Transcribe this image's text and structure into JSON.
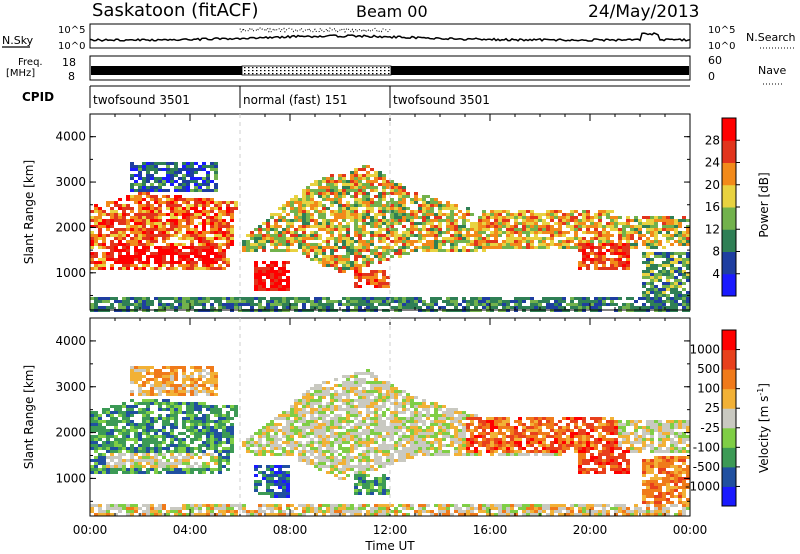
{
  "header": {
    "station": "Saskatoon (fitACF)",
    "beam": "Beam 00",
    "date": "24/May/2013"
  },
  "strip_panels": {
    "nsky_label": "N.Sky",
    "nsearch_label": "N.Search",
    "freq_label_1": "Freq.",
    "freq_label_2": "[MHz]",
    "nave_label": "Nave",
    "cpid_label": "CPID",
    "noise_ticks": [
      "10^5",
      "10^0"
    ],
    "freq_ticks": [
      "18",
      "8"
    ],
    "nave_ticks": [
      "60",
      "0"
    ]
  },
  "cpid_segments": [
    {
      "label": "twofsound 3501",
      "start_h": 0,
      "end_h": 6
    },
    {
      "label": "normal (fast) 151",
      "start_h": 6,
      "end_h": 12
    },
    {
      "label": "twofsound 3501",
      "start_h": 12,
      "end_h": 24
    }
  ],
  "chart_data": [
    {
      "type": "heatmap",
      "name": "power",
      "ylabel": "Slant Range [km]",
      "yticks": [
        "4000",
        "3000",
        "2000",
        "1000"
      ],
      "ylim": [
        180,
        4500
      ],
      "xlim_h": [
        0,
        24
      ],
      "colorbar_label": "Power [dB]",
      "colorbar_ticks": [
        "28",
        "24",
        "20",
        "16",
        "12",
        "8",
        "4"
      ],
      "colorbar_colors": [
        "#1a1aff",
        "#1e3ea0",
        "#2f7f55",
        "#72b24c",
        "#e8d240",
        "#f28a1a",
        "#e2341c",
        "#ff0000"
      ]
    },
    {
      "type": "heatmap",
      "name": "velocity",
      "ylabel": "Slant Range [km]",
      "yticks": [
        "4000",
        "3000",
        "2000",
        "1000"
      ],
      "ylim": [
        180,
        4500
      ],
      "xlim_h": [
        0,
        24
      ],
      "xlabel": "Time UT",
      "xticks": [
        "00:00",
        "04:00",
        "08:00",
        "12:00",
        "16:00",
        "20:00",
        "00:00"
      ],
      "colorbar_label": "Velocity [m s^-1]",
      "colorbar_ticks": [
        "1000",
        "500",
        "100",
        "25",
        "-25",
        "-100",
        "-500",
        "-1000"
      ],
      "colorbar_colors": [
        "#1a1aff",
        "#2050a0",
        "#3c9a55",
        "#7fce45",
        "#c9c9c1",
        "#f2b136",
        "#f07a1a",
        "#e8401c",
        "#ff0000"
      ]
    }
  ]
}
